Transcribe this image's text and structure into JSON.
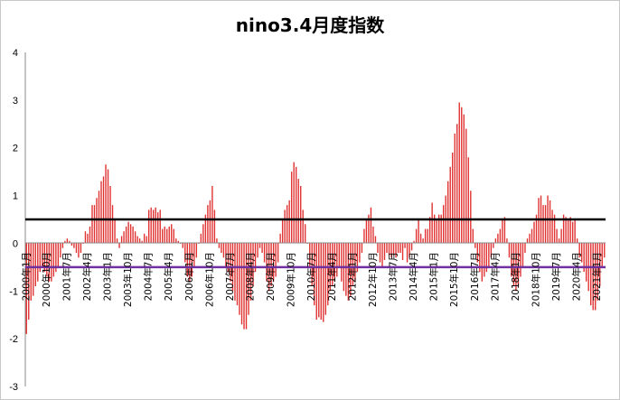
{
  "chart_data": {
    "type": "bar",
    "title": "nino3.4月度指数",
    "ylim": [
      -3,
      4
    ],
    "yticks": [
      "4",
      "3",
      "2",
      "1",
      "0",
      "-1",
      "-2",
      "-3"
    ],
    "bar_color": "#e03030",
    "reference_lines": [
      {
        "value": 0.5,
        "color": "#000000"
      },
      {
        "value": -0.5,
        "color": "#7030a0"
      }
    ],
    "x_labels": [
      "2000年1月",
      "2000年10月",
      "2001年7月",
      "2002年4月",
      "2003年1月",
      "2003年10月",
      "2004年7月",
      "2005年4月",
      "2006年1月",
      "2006年10月",
      "2007年7月",
      "2008年4月",
      "2009年1月",
      "2009年10月",
      "2010年7月",
      "2011年4月",
      "2012年1月",
      "2012年10月",
      "2013年7月",
      "2014年4月",
      "2015年1月",
      "2015年10月",
      "2016年7月",
      "2017年4月",
      "2018年1月",
      "2018年10月",
      "2019年7月",
      "2020年4月",
      "2021年1月"
    ],
    "series": [
      {
        "start": "2000-01",
        "values": [
          -1.9,
          -1.6,
          -1.2,
          -1.1,
          -0.9,
          -0.8,
          -0.6,
          -0.5,
          -0.6,
          -0.7,
          -0.8,
          -0.8,
          -0.7,
          -0.6,
          -0.5,
          -0.3,
          -0.1,
          0.05,
          0.1,
          0.05,
          -0.05,
          -0.1,
          -0.2,
          -0.3,
          -0.2,
          0.0,
          0.25,
          0.2,
          0.35,
          0.8,
          0.8,
          0.95,
          1.1,
          1.3,
          1.4,
          1.65,
          1.55,
          1.2,
          0.8,
          0.5,
          0.1,
          -0.1,
          0.15,
          0.25,
          0.35,
          0.45,
          0.4,
          0.35,
          0.25,
          0.15,
          0.1,
          0.05,
          0.2,
          0.15,
          0.7,
          0.75,
          0.7,
          0.75,
          0.65,
          0.7,
          0.3,
          0.35,
          0.3,
          0.35,
          0.4,
          0.3,
          0.1,
          0.05,
          0.0,
          -0.1,
          -0.4,
          -0.7,
          -0.8,
          -0.7,
          -0.5,
          -0.3,
          0.0,
          0.2,
          0.4,
          0.6,
          0.8,
          0.9,
          1.2,
          0.7,
          0.1,
          -0.1,
          -0.2,
          -0.3,
          -0.5,
          -0.6,
          -0.8,
          -1.0,
          -1.2,
          -1.3,
          -1.5,
          -1.7,
          -1.8,
          -1.8,
          -1.5,
          -1.2,
          -0.9,
          -0.6,
          -0.3,
          -0.1,
          -0.2,
          -0.4,
          -0.8,
          -1.0,
          -0.9,
          -0.8,
          -0.7,
          -0.4,
          0.2,
          0.5,
          0.7,
          0.8,
          0.9,
          1.5,
          1.7,
          1.6,
          1.35,
          1.2,
          0.7,
          0.4,
          0.0,
          -0.5,
          -0.9,
          -1.3,
          -1.6,
          -1.55,
          -1.6,
          -1.65,
          -1.5,
          -1.3,
          -1.0,
          -0.9,
          -0.8,
          -0.7,
          -0.5,
          -0.8,
          -1.0,
          -1.1,
          -1.2,
          -1.1,
          -0.9,
          -0.8,
          -0.6,
          -0.4,
          -0.2,
          0.3,
          0.5,
          0.6,
          0.75,
          0.35,
          0.15,
          -0.2,
          -0.4,
          -0.5,
          -0.35,
          -0.2,
          -0.25,
          -0.3,
          -0.25,
          -0.3,
          -0.2,
          -0.2,
          -0.35,
          -0.1,
          -0.4,
          -0.3,
          -0.15,
          0.05,
          0.3,
          0.5,
          0.2,
          0.1,
          0.3,
          0.3,
          0.55,
          0.85,
          0.6,
          0.5,
          0.6,
          0.6,
          0.8,
          1.0,
          1.3,
          1.6,
          1.9,
          2.3,
          2.5,
          2.95,
          2.85,
          2.7,
          2.4,
          1.8,
          1.1,
          0.3,
          -0.1,
          -0.4,
          -0.6,
          -0.8,
          -0.7,
          -0.6,
          -0.5,
          -0.3,
          -0.1,
          0.1,
          0.2,
          0.3,
          0.5,
          0.55,
          0.1,
          -0.3,
          -0.7,
          -0.9,
          -1.0,
          -0.9,
          -0.7,
          -0.5,
          -0.2,
          0.1,
          0.2,
          0.3,
          0.45,
          0.6,
          0.95,
          1.0,
          0.8,
          0.8,
          1.0,
          0.9,
          0.7,
          0.6,
          0.3,
          0.1,
          0.3,
          0.6,
          0.55,
          0.5,
          0.55,
          0.45,
          0.5,
          0.1,
          -0.3,
          -0.4,
          -0.6,
          -0.8,
          -1.0,
          -1.3,
          -1.4,
          -1.4,
          -1.2,
          -0.9,
          -0.5,
          -0.3
        ]
      }
    ]
  }
}
